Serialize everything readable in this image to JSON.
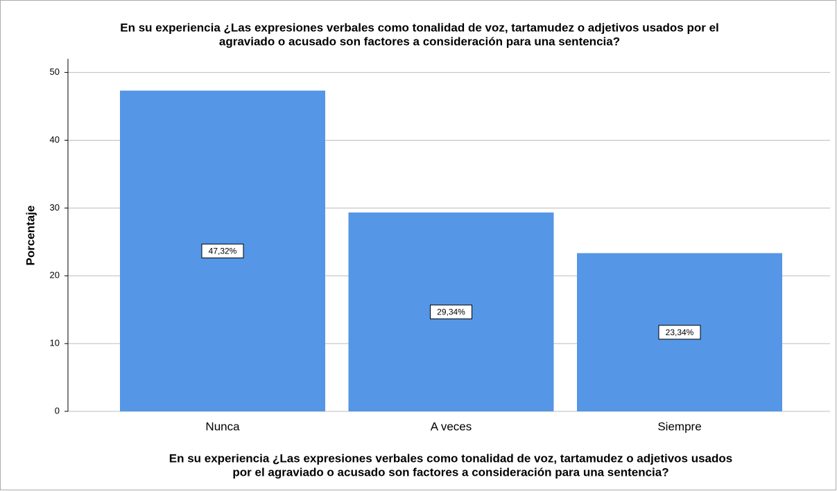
{
  "chart_data": {
    "type": "bar",
    "title": [
      "En su experiencia ¿Las expresiones verbales como tonalidad de voz, tartamudez o adjetivos usados por el",
      "agraviado o acusado son factores a consideración para una sentencia?"
    ],
    "xlabel": [
      "En su experiencia ¿Las expresiones verbales como tonalidad de voz, tartamudez o adjetivos usados",
      "por el agraviado o acusado son factores a consideración para una sentencia?"
    ],
    "ylabel": "Porcentaje",
    "categories": [
      "Nunca",
      "A veces",
      "Siempre"
    ],
    "values": [
      47.32,
      29.34,
      23.34
    ],
    "value_labels": [
      "47,32%",
      "29,34%",
      "23,34%"
    ],
    "color": "#5596e6",
    "ylim": [
      0,
      52
    ],
    "yticks": [
      0,
      10,
      20,
      30,
      40,
      50
    ],
    "grid": true
  }
}
